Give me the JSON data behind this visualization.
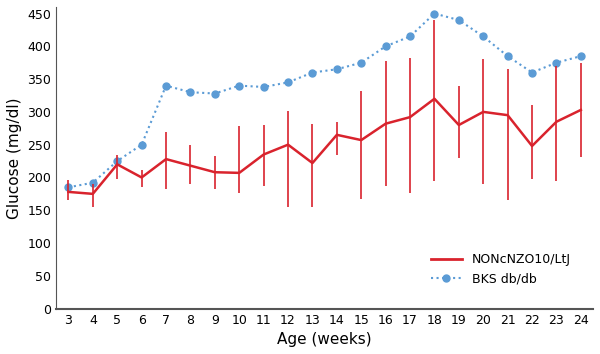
{
  "ages": [
    3,
    4,
    5,
    6,
    7,
    8,
    9,
    10,
    11,
    12,
    13,
    14,
    15,
    16,
    17,
    18,
    19,
    20,
    21,
    22,
    23,
    24
  ],
  "red_mean": [
    178,
    175,
    220,
    200,
    228,
    218,
    208,
    207,
    235,
    250,
    222,
    265,
    257,
    282,
    292,
    320,
    280,
    300,
    295,
    248,
    285,
    303
  ],
  "red_err_low": [
    12,
    20,
    22,
    15,
    45,
    28,
    25,
    30,
    48,
    95,
    67,
    30,
    90,
    95,
    115,
    125,
    50,
    110,
    130,
    50,
    90,
    72
  ],
  "red_err_high": [
    18,
    15,
    15,
    12,
    42,
    32,
    25,
    72,
    45,
    52,
    60,
    20,
    75,
    95,
    90,
    120,
    60,
    80,
    70,
    62,
    85,
    72
  ],
  "blue_ages": [
    3,
    4,
    5,
    6,
    7,
    8,
    9,
    10,
    11,
    12,
    13,
    14,
    15,
    16,
    17,
    18,
    19,
    20,
    21,
    22,
    23,
    24
  ],
  "blue_mean": [
    185,
    192,
    225,
    250,
    340,
    330,
    328,
    340,
    338,
    345,
    360,
    365,
    375,
    400,
    415,
    450,
    440,
    415,
    385,
    360,
    375,
    385
  ],
  "red_color": "#d9232d",
  "blue_color": "#5b9bd5",
  "legend_red": "NONcNZO10/LtJ",
  "legend_blue": "BKS db/db",
  "xlabel": "Age (weeks)",
  "ylabel": "Glucose (mg/dl)",
  "ylim": [
    0,
    460
  ],
  "yticks": [
    0,
    50,
    100,
    150,
    200,
    250,
    300,
    350,
    400,
    450
  ],
  "bg_color": "#ffffff",
  "spine_color": "#555555"
}
